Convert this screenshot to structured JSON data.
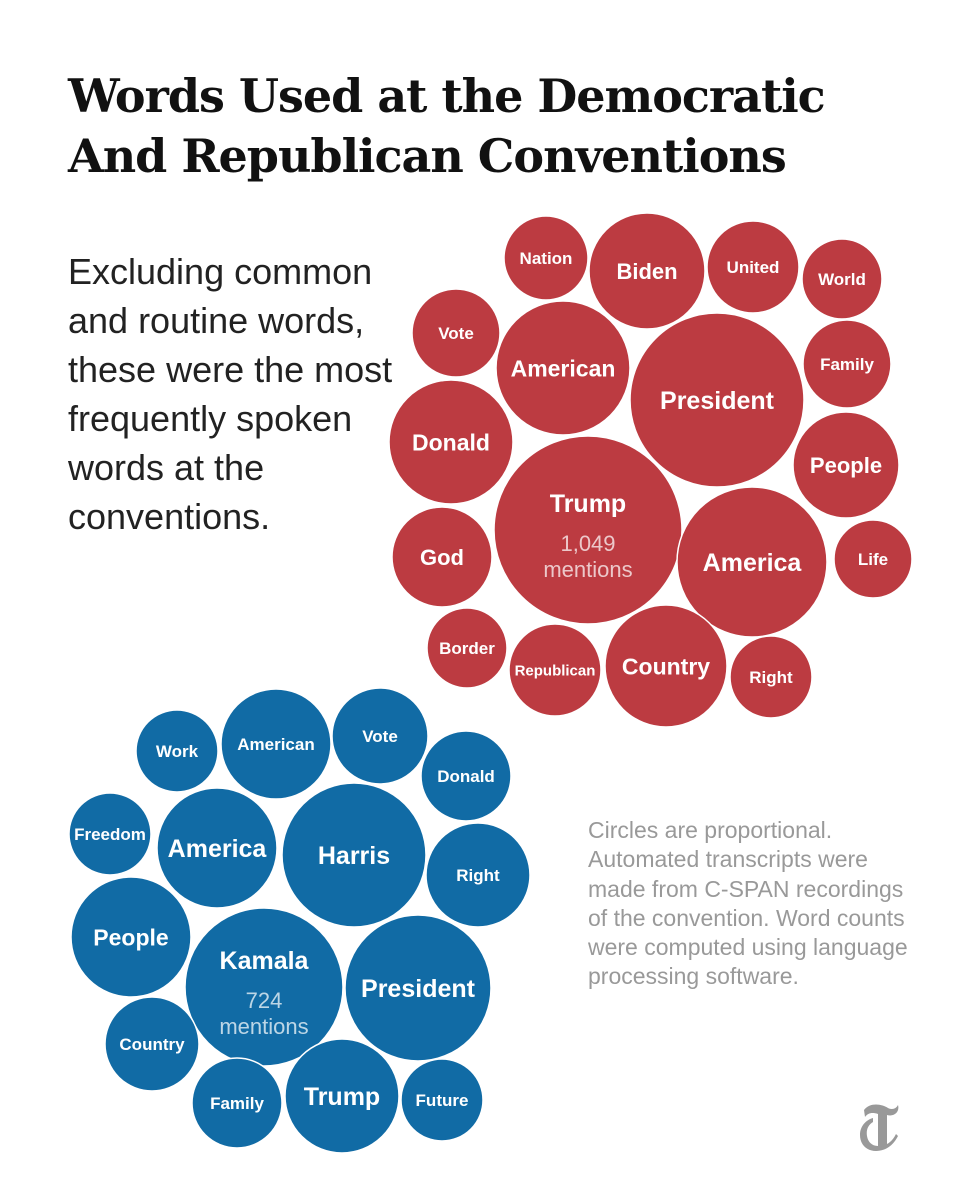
{
  "title_line1": "Words Used at the Democratic",
  "title_line2": "And Republican Conventions",
  "dek": "Excluding common and routine words, these were the most frequently spoken words at the conventions.",
  "note": "Circles are proportional. Automated transcripts were made from C-SPAN recordings of the convention. Word counts were computed using language processing software.",
  "logo": {
    "icon": "nyt-t-logo-icon",
    "color": "#999999"
  },
  "chart_data": [
    {
      "type": "bubble",
      "series": "Republican",
      "color": "#bc3b41",
      "words": [
        {
          "word": "Trump",
          "mentions_label": "1,049",
          "unit": "mentions"
        },
        {
          "word": "President"
        },
        {
          "word": "America"
        },
        {
          "word": "American"
        },
        {
          "word": "Donald"
        },
        {
          "word": "Country"
        },
        {
          "word": "Biden"
        },
        {
          "word": "People"
        },
        {
          "word": "God"
        },
        {
          "word": "United"
        },
        {
          "word": "Republican"
        },
        {
          "word": "Family"
        },
        {
          "word": "Nation"
        },
        {
          "word": "Right"
        },
        {
          "word": "Vote"
        },
        {
          "word": "Life"
        },
        {
          "word": "Border"
        },
        {
          "word": "World"
        }
      ]
    },
    {
      "type": "bubble",
      "series": "Democratic",
      "color": "#116ba5",
      "words": [
        {
          "word": "Kamala",
          "mentions_label": "724",
          "unit": "mentions"
        },
        {
          "word": "President"
        },
        {
          "word": "Harris"
        },
        {
          "word": "America"
        },
        {
          "word": "People"
        },
        {
          "word": "Trump"
        },
        {
          "word": "American"
        },
        {
          "word": "Right"
        },
        {
          "word": "Country"
        },
        {
          "word": "Vote"
        },
        {
          "word": "Family"
        },
        {
          "word": "Future"
        },
        {
          "word": "Donald"
        },
        {
          "word": "Work"
        },
        {
          "word": "Freedom"
        }
      ]
    }
  ]
}
